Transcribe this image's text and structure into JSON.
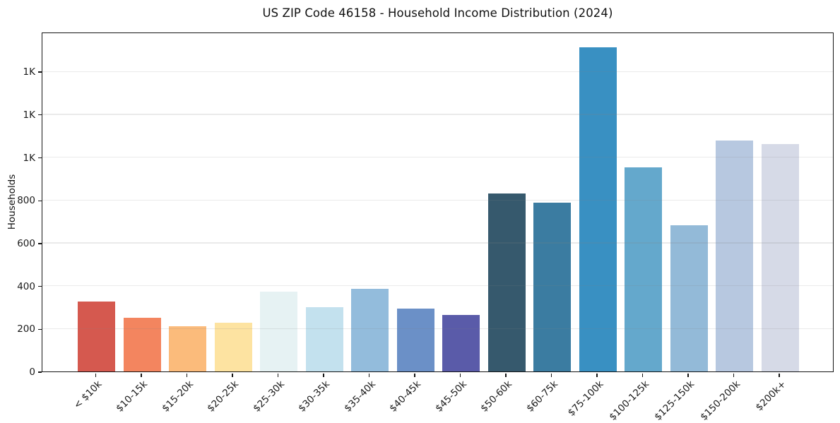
{
  "chart_data": {
    "type": "bar",
    "title": "US ZIP Code 46158 - Household Income Distribution (2024)",
    "xlabel": "",
    "ylabel": "Households",
    "categories": [
      "< $10k",
      "$10-15k",
      "$15-20k",
      "$20-25k",
      "$25-30k",
      "$30-35k",
      "$35-40k",
      "$40-45k",
      "$45-50k",
      "$50-60k",
      "$60-75k",
      "$75-100k",
      "$100-125k",
      "$125-150k",
      "$150-200k",
      "$200k+"
    ],
    "values": [
      326,
      252,
      211,
      227,
      371,
      300,
      385,
      293,
      264,
      829,
      787,
      1513,
      951,
      681,
      1076,
      1060
    ],
    "bar_colors": [
      "#d5594f",
      "#f3855f",
      "#fbbb7b",
      "#fde3a1",
      "#e6f2f3",
      "#c3e1ee",
      "#93bcdc",
      "#6b90c7",
      "#5a5ba9",
      "#36596d",
      "#3b7ca1",
      "#3990c2",
      "#64a8cc",
      "#93bad8",
      "#b7c8e0",
      "#d6dae7"
    ],
    "ylim": [
      0,
      1585
    ],
    "y_ticks": [
      0,
      200,
      400,
      600,
      800,
      1000,
      1200,
      1400
    ],
    "y_tick_labels": [
      "0",
      "200",
      "400",
      "600",
      "800",
      "1K",
      "1K",
      "1K"
    ],
    "grid": "horizontal",
    "legend": "none",
    "background_color": "#ffffff",
    "gridline_color": "#e7e7e7",
    "spine_color": "#151515",
    "text_color": "#1a1a1a"
  }
}
